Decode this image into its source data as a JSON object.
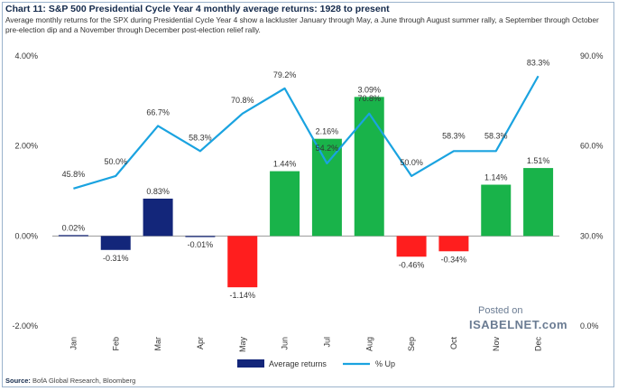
{
  "title": "Chart 11: S&P 500 Presidential Cycle Year 4 monthly average returns: 1928 to present",
  "subtitle": "Average monthly returns for the SPX during Presidential Cycle Year 4 show a lackluster January through May, a June through August summer rally, a September through October pre-election dip and a November through December post-election relief rally.",
  "source_label": "Source:",
  "source_text": "BofA Global Research, Bloomberg",
  "watermark": {
    "posted": "Posted on",
    "site": "ISABELNET.com"
  },
  "colors": {
    "blue_bar": "#13267a",
    "green_bar": "#19b34a",
    "red_bar": "#ff1e1e",
    "line": "#1aa3e0"
  },
  "chart_data": {
    "type": "bar",
    "categories": [
      "Jan",
      "Feb",
      "Mar",
      "Apr",
      "May",
      "Jun",
      "Jul",
      "Aug",
      "Sep",
      "Oct",
      "Nov",
      "Dec"
    ],
    "series": [
      {
        "name": "Average returns",
        "axis": "left",
        "values": [
          0.02,
          -0.31,
          0.83,
          -0.01,
          -1.14,
          1.44,
          2.16,
          3.09,
          -0.46,
          -0.34,
          1.14,
          1.51
        ],
        "labels": [
          "0.02%",
          "-0.31%",
          "0.83%",
          "-0.01%",
          "-1.14%",
          "1.44%",
          "2.16%",
          "3.09%",
          "-0.46%",
          "-0.34%",
          "1.14%",
          "1.51%"
        ],
        "bar_colors": [
          "blue",
          "blue",
          "blue",
          "blue",
          "red",
          "green",
          "green",
          "green",
          "red",
          "red",
          "green",
          "green"
        ]
      },
      {
        "name": "% Up",
        "axis": "right",
        "type": "line",
        "values": [
          45.8,
          50.0,
          66.7,
          58.3,
          70.8,
          79.2,
          54.2,
          70.8,
          50.0,
          58.3,
          58.3,
          83.3
        ],
        "labels": [
          "45.8%",
          "50.0%",
          "66.7%",
          "58.3%",
          "70.8%",
          "79.2%",
          "54.2%",
          "70.8%",
          "50.0%",
          "58.3%",
          "58.3%",
          "83.3%"
        ]
      }
    ],
    "y_left": {
      "lim": [
        -2,
        4
      ],
      "ticks": [
        4,
        2,
        0,
        -2
      ],
      "tick_labels": [
        "4.00%",
        "2.00%",
        "0.00%",
        "-2.00%"
      ]
    },
    "y_right": {
      "lim": [
        0,
        90
      ],
      "ticks": [
        90,
        60,
        30,
        0
      ],
      "tick_labels": [
        "90.0%",
        "60.0%",
        "30.0%",
        "0.0%"
      ]
    },
    "legend": {
      "position": "bottom-center",
      "items": [
        "Average returns",
        "% Up"
      ]
    }
  }
}
